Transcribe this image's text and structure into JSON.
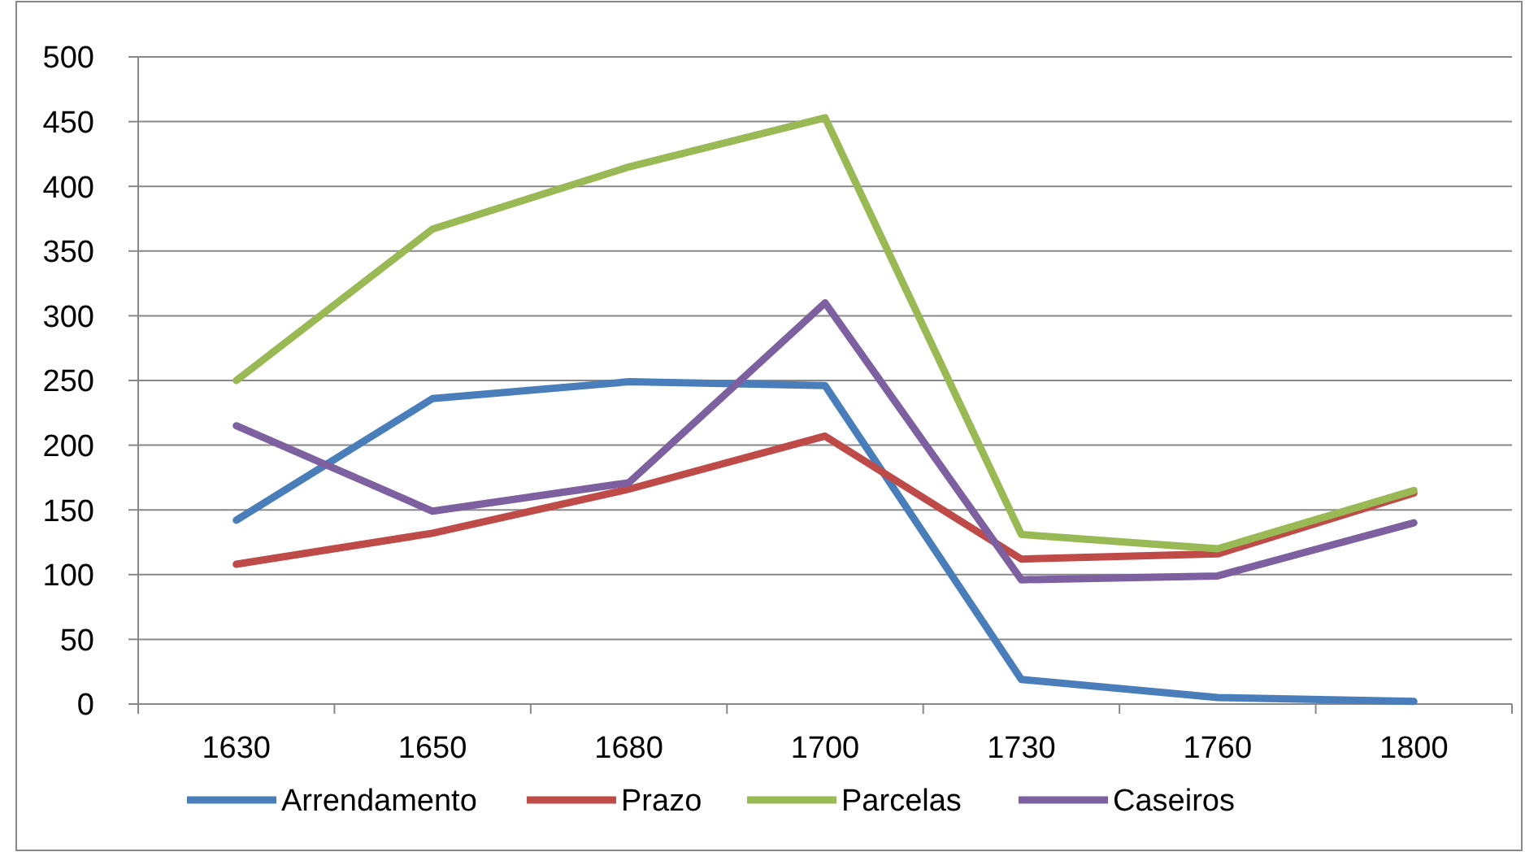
{
  "chart_data": {
    "type": "line",
    "categories": [
      "1630",
      "1650",
      "1680",
      "1700",
      "1730",
      "1760",
      "1800"
    ],
    "series": [
      {
        "name": "Arrendamento",
        "color": "#4a7ebb",
        "values": [
          142,
          236,
          249,
          246,
          19,
          5,
          2
        ]
      },
      {
        "name": "Prazo",
        "color": "#be4b48",
        "values": [
          108,
          132,
          166,
          207,
          112,
          116,
          163
        ]
      },
      {
        "name": "Parcelas",
        "color": "#98b954",
        "values": [
          250,
          367,
          415,
          453,
          131,
          120,
          165
        ]
      },
      {
        "name": "Caseiros",
        "color": "#7d60a0",
        "values": [
          215,
          149,
          171,
          310,
          96,
          99,
          140
        ]
      }
    ],
    "ylim": [
      0,
      500
    ],
    "yticks": [
      0,
      50,
      100,
      150,
      200,
      250,
      300,
      350,
      400,
      450,
      500
    ],
    "grid": "y",
    "legend": "bottom",
    "marker": "none",
    "line_style": "solid"
  }
}
